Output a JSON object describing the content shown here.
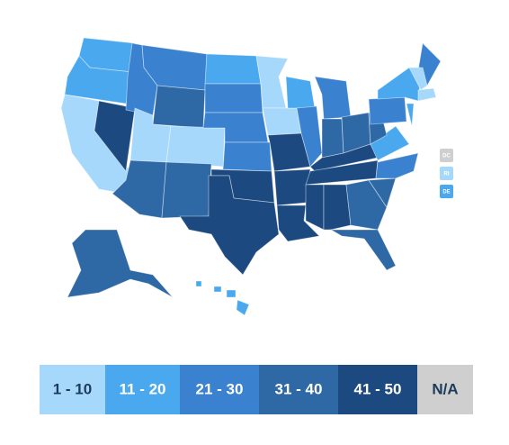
{
  "map": {
    "tiles": [
      {
        "label": "DC",
        "color": "#cfcfcf"
      },
      {
        "label": "RI",
        "color": "#a6d8fb"
      },
      {
        "label": "DE",
        "color": "#4aa8ee"
      }
    ],
    "legend": [
      {
        "label": "1 - 10",
        "color": "#a6d8fb"
      },
      {
        "label": "11 - 20",
        "color": "#4aa8ee"
      },
      {
        "label": "21 - 30",
        "color": "#3a82d0"
      },
      {
        "label": "31 - 40",
        "color": "#2e69a6"
      },
      {
        "label": "41 - 50",
        "color": "#1c4a80"
      },
      {
        "label": "N/A",
        "color": "#cfcfcf"
      }
    ]
  }
}
